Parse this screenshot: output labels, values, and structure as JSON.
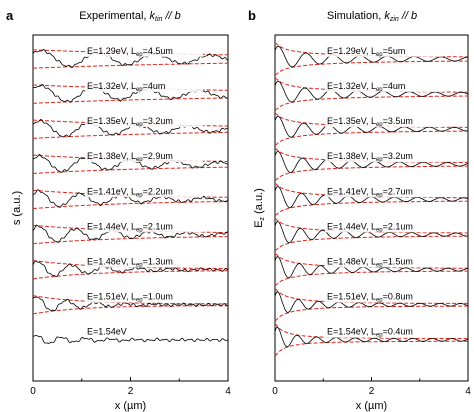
{
  "chart_data": [
    {
      "panel_letter": "a",
      "title_plain": "Experimental, ",
      "title_k": "k",
      "title_k_sub": "tin",
      "title_tail": " // b",
      "type": "line",
      "xlabel": "x (µm)",
      "ylabel": "s (a.u.)",
      "xlim": [
        0,
        4
      ],
      "xticks": [
        "0",
        "2",
        "4"
      ],
      "grid": false,
      "series": [
        {
          "label_E": "E=1.29eV, L",
          "label_sub": "ep",
          "label_L": "=4.5um",
          "period": 1.16,
          "decay": 4.5,
          "amp": 0.6,
          "has_envelope": true,
          "noisy": true
        },
        {
          "label_E": "E=1.32eV, L",
          "label_sub": "ep",
          "label_L": "=4um",
          "period": 1.08,
          "decay": 4.0,
          "amp": 0.6,
          "has_envelope": true,
          "noisy": true
        },
        {
          "label_E": "E=1.35eV, L",
          "label_sub": "ep",
          "label_L": "=3.2um",
          "period": 1.0,
          "decay": 3.2,
          "amp": 0.6,
          "has_envelope": true,
          "noisy": true
        },
        {
          "label_E": "E=1.38eV, L",
          "label_sub": "ep",
          "label_L": "=2.9um",
          "period": 0.92,
          "decay": 2.9,
          "amp": 0.6,
          "has_envelope": true,
          "noisy": true
        },
        {
          "label_E": "E=1.41eV, L",
          "label_sub": "ep",
          "label_L": "=2.2um",
          "period": 0.84,
          "decay": 2.2,
          "amp": 0.6,
          "has_envelope": true,
          "noisy": true
        },
        {
          "label_E": "E=1.44eV, L",
          "label_sub": "ep",
          "label_L": "=2.1um",
          "period": 0.76,
          "decay": 2.1,
          "amp": 0.6,
          "has_envelope": true,
          "noisy": true
        },
        {
          "label_E": "E=1.48eV, L",
          "label_sub": "ep",
          "label_L": "=1.3um",
          "period": 0.68,
          "decay": 1.3,
          "amp": 0.6,
          "has_envelope": true,
          "noisy": true
        },
        {
          "label_E": "E=1.51eV, L",
          "label_sub": "ep",
          "label_L": "=1.0um",
          "period": 0.6,
          "decay": 1.0,
          "amp": 0.6,
          "has_envelope": true,
          "noisy": true
        },
        {
          "label_E": "E=1.54eV",
          "label_sub": "",
          "label_L": "",
          "period": 0.5,
          "decay": 1.0,
          "amp": 0.35,
          "has_envelope": false,
          "noisy": true
        }
      ]
    },
    {
      "panel_letter": "b",
      "title_plain": "Simulation, ",
      "title_k": "k",
      "title_k_sub": "zin",
      "title_tail": " // b",
      "type": "line",
      "xlabel": "x (µm)",
      "ylabel_main": "E",
      "ylabel_sub": "z",
      "ylabel_tail": " (a.u.)",
      "xlim": [
        0,
        4
      ],
      "xticks": [
        "0",
        "2",
        "4"
      ],
      "grid": false,
      "series": [
        {
          "label_E": "E=1.29eV, L",
          "label_sub": "ep",
          "label_L": "=5um",
          "period": 0.56,
          "decay": 5.0,
          "amp": 0.7,
          "has_envelope": true,
          "noisy": false
        },
        {
          "label_E": "E=1.32eV, L",
          "label_sub": "ep",
          "label_L": "=4um",
          "period": 0.54,
          "decay": 4.0,
          "amp": 0.7,
          "has_envelope": true,
          "noisy": false
        },
        {
          "label_E": "E=1.35eV, L",
          "label_sub": "ep",
          "label_L": "=3.5um",
          "period": 0.52,
          "decay": 3.5,
          "amp": 0.7,
          "has_envelope": true,
          "noisy": false
        },
        {
          "label_E": "E=1.38eV, L",
          "label_sub": "ep",
          "label_L": "=3.2um",
          "period": 0.5,
          "decay": 3.2,
          "amp": 0.7,
          "has_envelope": true,
          "noisy": false
        },
        {
          "label_E": "E=1.41eV, L",
          "label_sub": "ep",
          "label_L": "=2.7um",
          "period": 0.48,
          "decay": 2.7,
          "amp": 0.7,
          "has_envelope": true,
          "noisy": false
        },
        {
          "label_E": "E=1.44eV, L",
          "label_sub": "ep",
          "label_L": "=2.1um",
          "period": 0.46,
          "decay": 2.1,
          "amp": 0.7,
          "has_envelope": true,
          "noisy": false
        },
        {
          "label_E": "E=1.48eV, L",
          "label_sub": "ep",
          "label_L": "=1.5um",
          "period": 0.44,
          "decay": 1.5,
          "amp": 0.7,
          "has_envelope": true,
          "noisy": false
        },
        {
          "label_E": "E=1.51eV, L",
          "label_sub": "ep",
          "label_L": "=0.8um",
          "period": 0.42,
          "decay": 0.8,
          "amp": 0.7,
          "has_envelope": true,
          "noisy": false
        },
        {
          "label_E": "E=1.54eV, L",
          "label_sub": "ep",
          "label_L": "=0.4um",
          "period": 0.4,
          "decay": 0.4,
          "amp": 0.7,
          "has_envelope": true,
          "noisy": false
        }
      ]
    }
  ],
  "colors": {
    "curve": "#000000",
    "envelope": "#e0241b",
    "axis": "#000000"
  }
}
